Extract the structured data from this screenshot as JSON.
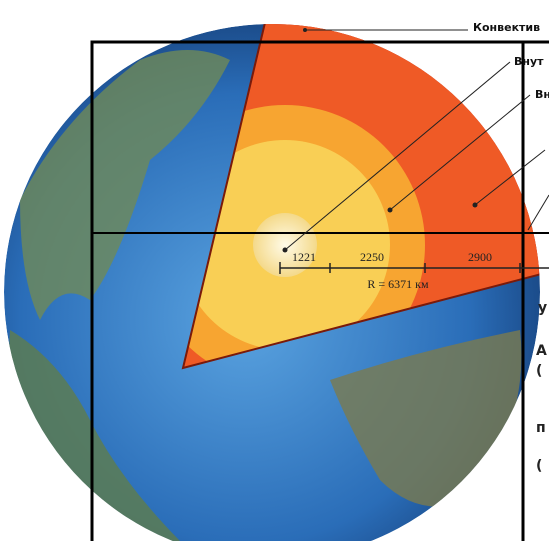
{
  "labels": {
    "convective": "Конвектив",
    "inner": "Внут",
    "outer": "Вн"
  },
  "scale": {
    "inner_core": "1221",
    "outer_core": "2250",
    "mantle": "2900",
    "radius": "R = 6371 км"
  },
  "side_marks": [
    "у",
    "А",
    "(",
    "п",
    "("
  ]
}
